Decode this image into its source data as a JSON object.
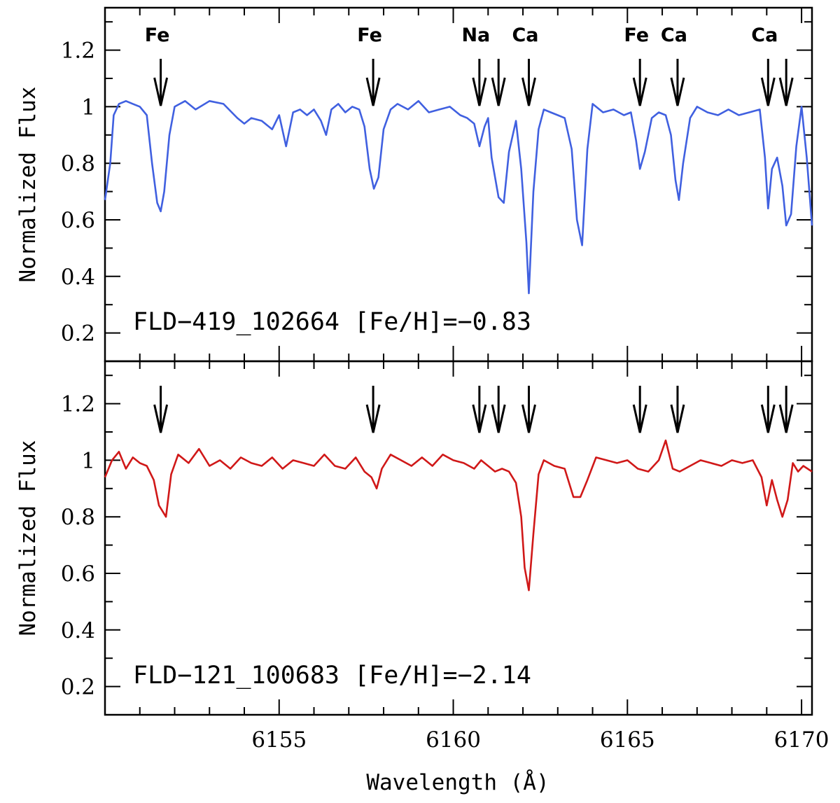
{
  "chart_data": {
    "type": "line",
    "xlabel": "Wavelength (Å)",
    "ylabel": "Normalized Flux",
    "xlim": [
      6150.0,
      6170.3
    ],
    "ylim": [
      0.1,
      1.35
    ],
    "x_ticks": [
      6155,
      6160,
      6165,
      6170
    ],
    "x_tick_labels": [
      "6155",
      "6160",
      "6165",
      "6170"
    ],
    "y_ticks": [
      0.2,
      0.4,
      0.6,
      0.8,
      1.0,
      1.2
    ],
    "y_tick_labels": [
      "0.2",
      "0.4",
      "0.6",
      "0.8",
      "1",
      "1.2"
    ],
    "line_markers": [
      {
        "wavelength": 6151.6,
        "label": "Fe"
      },
      {
        "wavelength": 6157.7,
        "label": "Fe"
      },
      {
        "wavelength": 6160.75,
        "label": "Na"
      },
      {
        "wavelength": 6161.3,
        "label": ""
      },
      {
        "wavelength": 6162.17,
        "label": "Ca"
      },
      {
        "wavelength": 6165.36,
        "label": "Fe"
      },
      {
        "wavelength": 6166.44,
        "label": "Ca"
      },
      {
        "wavelength": 6169.04,
        "label": "Ca"
      },
      {
        "wavelength": 6169.56,
        "label": ""
      }
    ],
    "panels": [
      {
        "label": "FLD−419_102664 [Fe/H]=−0.83",
        "color": "#4060e0",
        "series": {
          "name": "FLD-419_102664",
          "x": [
            6150.0,
            6150.15,
            6150.25,
            6150.4,
            6150.6,
            6150.8,
            6151.0,
            6151.2,
            6151.35,
            6151.5,
            6151.6,
            6151.7,
            6151.85,
            6152.0,
            6152.3,
            6152.6,
            6153.0,
            6153.4,
            6153.8,
            6154.0,
            6154.2,
            6154.5,
            6154.8,
            6155.0,
            6155.2,
            6155.4,
            6155.6,
            6155.8,
            6156.0,
            6156.2,
            6156.35,
            6156.5,
            6156.7,
            6156.9,
            6157.1,
            6157.3,
            6157.45,
            6157.6,
            6157.72,
            6157.85,
            6158.0,
            6158.2,
            6158.4,
            6158.7,
            6159.0,
            6159.3,
            6159.6,
            6159.9,
            6160.2,
            6160.4,
            6160.6,
            6160.75,
            6160.9,
            6161.0,
            6161.1,
            6161.3,
            6161.45,
            6161.6,
            6161.8,
            6161.95,
            6162.1,
            6162.17,
            6162.3,
            6162.45,
            6162.6,
            6162.8,
            6163.0,
            6163.2,
            6163.4,
            6163.55,
            6163.7,
            6163.85,
            6164.0,
            6164.3,
            6164.6,
            6164.9,
            6165.1,
            6165.25,
            6165.36,
            6165.5,
            6165.7,
            6165.9,
            6166.1,
            6166.25,
            6166.38,
            6166.48,
            6166.6,
            6166.8,
            6167.0,
            6167.3,
            6167.6,
            6167.9,
            6168.2,
            6168.5,
            6168.8,
            6168.95,
            6169.04,
            6169.15,
            6169.3,
            6169.45,
            6169.56,
            6169.7,
            6169.85,
            6170.0,
            6170.15,
            6170.3
          ],
          "y": [
            0.67,
            0.8,
            0.97,
            1.01,
            1.02,
            1.01,
            1.0,
            0.97,
            0.8,
            0.66,
            0.63,
            0.7,
            0.9,
            1.0,
            1.02,
            0.99,
            1.02,
            1.01,
            0.96,
            0.94,
            0.96,
            0.95,
            0.92,
            0.97,
            0.86,
            0.98,
            0.99,
            0.97,
            0.99,
            0.95,
            0.9,
            0.99,
            1.01,
            0.98,
            1.0,
            0.99,
            0.93,
            0.78,
            0.71,
            0.75,
            0.92,
            0.99,
            1.01,
            0.99,
            1.02,
            0.98,
            0.99,
            1.0,
            0.97,
            0.96,
            0.94,
            0.86,
            0.93,
            0.96,
            0.82,
            0.68,
            0.66,
            0.84,
            0.95,
            0.78,
            0.52,
            0.34,
            0.7,
            0.92,
            0.99,
            0.98,
            0.97,
            0.96,
            0.85,
            0.6,
            0.51,
            0.85,
            1.01,
            0.98,
            0.99,
            0.97,
            0.98,
            0.88,
            0.78,
            0.84,
            0.96,
            0.98,
            0.97,
            0.9,
            0.74,
            0.67,
            0.8,
            0.96,
            1.0,
            0.98,
            0.97,
            0.99,
            0.97,
            0.98,
            0.99,
            0.82,
            0.64,
            0.78,
            0.82,
            0.72,
            0.58,
            0.62,
            0.86,
            1.0,
            0.82,
            0.58
          ]
        }
      },
      {
        "label": "FLD−121_100683 [Fe/H]=−2.14",
        "color": "#d01818",
        "series": {
          "name": "FLD-121_100683",
          "x": [
            6150.0,
            6150.2,
            6150.4,
            6150.6,
            6150.8,
            6151.0,
            6151.2,
            6151.4,
            6151.55,
            6151.65,
            6151.75,
            6151.9,
            6152.1,
            6152.4,
            6152.7,
            6153.0,
            6153.3,
            6153.6,
            6153.9,
            6154.2,
            6154.5,
            6154.8,
            6155.1,
            6155.4,
            6155.7,
            6156.0,
            6156.3,
            6156.6,
            6156.9,
            6157.2,
            6157.45,
            6157.65,
            6157.8,
            6157.95,
            6158.2,
            6158.5,
            6158.8,
            6159.1,
            6159.4,
            6159.7,
            6160.0,
            6160.3,
            6160.6,
            6160.8,
            6161.0,
            6161.2,
            6161.4,
            6161.6,
            6161.8,
            6161.95,
            6162.05,
            6162.17,
            6162.3,
            6162.45,
            6162.6,
            6162.9,
            6163.2,
            6163.45,
            6163.65,
            6163.85,
            6164.1,
            6164.4,
            6164.7,
            6165.0,
            6165.3,
            6165.6,
            6165.9,
            6166.1,
            6166.3,
            6166.5,
            6166.8,
            6167.1,
            6167.4,
            6167.7,
            6168.0,
            6168.3,
            6168.6,
            6168.85,
            6169.0,
            6169.15,
            6169.3,
            6169.45,
            6169.6,
            6169.75,
            6169.9,
            6170.05,
            6170.3
          ],
          "y": [
            0.94,
            1.0,
            1.03,
            0.97,
            1.01,
            0.99,
            0.98,
            0.93,
            0.84,
            0.82,
            0.8,
            0.95,
            1.02,
            0.99,
            1.04,
            0.98,
            1.0,
            0.97,
            1.01,
            0.99,
            0.98,
            1.01,
            0.97,
            1.0,
            0.99,
            0.98,
            1.02,
            0.98,
            0.97,
            1.01,
            0.96,
            0.94,
            0.9,
            0.97,
            1.02,
            1.0,
            0.98,
            1.01,
            0.98,
            1.02,
            1.0,
            0.99,
            0.97,
            1.0,
            0.98,
            0.96,
            0.97,
            0.96,
            0.92,
            0.8,
            0.62,
            0.54,
            0.74,
            0.95,
            1.0,
            0.98,
            0.97,
            0.87,
            0.87,
            0.93,
            1.01,
            1.0,
            0.99,
            1.0,
            0.97,
            0.96,
            1.0,
            1.07,
            0.97,
            0.96,
            0.98,
            1.0,
            0.99,
            0.98,
            1.0,
            0.99,
            1.0,
            0.94,
            0.84,
            0.93,
            0.86,
            0.8,
            0.86,
            0.99,
            0.96,
            0.98,
            0.96
          ]
        }
      }
    ]
  }
}
